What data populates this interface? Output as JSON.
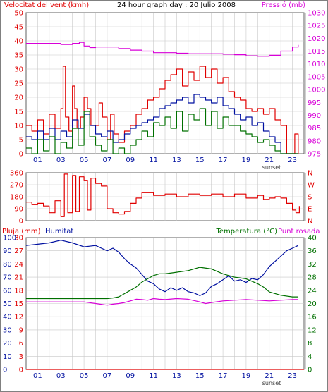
{
  "colors": {
    "red": "#e00000",
    "blue": "#0010a0",
    "green": "#007000",
    "magenta": "#d800d8",
    "grid": "#c8c8c8",
    "frame": "#606060"
  },
  "chart_data": [
    {
      "type": "line",
      "title": "24 hour graph day : 20 Julio 2008",
      "ylabel": "Velocitat del vent (kmh)",
      "ylabel_right": "Pressió (mb)",
      "ylim": [
        0,
        50
      ],
      "ylim_right": [
        975,
        1030
      ],
      "yticks": [
        0,
        5,
        10,
        15,
        20,
        25,
        30,
        35,
        40,
        45,
        50
      ],
      "yticks_right": [
        975,
        980,
        985,
        990,
        995,
        1000,
        1005,
        1010,
        1015,
        1020,
        1025,
        1030
      ],
      "xlim": [
        0,
        24
      ],
      "xticks": [
        "01",
        "03",
        "05",
        "07",
        "09",
        "11",
        "13",
        "15",
        "17",
        "19",
        "21",
        "23"
      ],
      "annotation": "sunset",
      "grid": true,
      "series": [
        {
          "axis": "right",
          "color": "magenta",
          "x": [
            0,
            1,
            2,
            3,
            4,
            4.6,
            5,
            5.5,
            6,
            7,
            8,
            9,
            10,
            11,
            12,
            13,
            14,
            15,
            16,
            17,
            18,
            19,
            20,
            21,
            22,
            23,
            23.5
          ],
          "values": [
            1018,
            1018,
            1018,
            1017.6,
            1018,
            1018.4,
            1017,
            1016.4,
            1016.6,
            1016.6,
            1016,
            1015.4,
            1015,
            1014.4,
            1014.4,
            1014.2,
            1014,
            1014,
            1014,
            1013.8,
            1013.6,
            1013.2,
            1013,
            1013.4,
            1015,
            1016.6,
            1017.4
          ]
        },
        {
          "axis": "left",
          "color": "red",
          "x": [
            0,
            0.5,
            1,
            1.5,
            2,
            2.5,
            3,
            3.2,
            3.4,
            3.7,
            4,
            4.2,
            4.4,
            4.7,
            5,
            5.3,
            5.6,
            6,
            6.3,
            6.6,
            7,
            7.3,
            7.6,
            8,
            8.5,
            9,
            9.5,
            10,
            10.5,
            11,
            11.5,
            12,
            12.5,
            13,
            13.5,
            14,
            14.5,
            15,
            15.5,
            16,
            16.5,
            17,
            17.5,
            18,
            18.5,
            19,
            19.5,
            20,
            20.5,
            21,
            21.5,
            22,
            22.5,
            23,
            23.2,
            23.5
          ],
          "values": [
            10,
            8,
            12,
            7,
            14,
            9,
            16,
            31,
            13,
            8,
            24,
            16,
            9,
            13,
            20,
            16,
            10,
            10,
            18,
            13,
            5,
            14,
            7,
            4,
            8,
            10,
            14,
            16,
            19,
            20,
            23,
            26,
            28,
            30,
            24,
            29,
            26,
            31,
            27,
            30,
            25,
            27,
            22,
            20,
            19,
            16,
            15,
            16,
            14,
            16,
            12,
            10,
            0,
            0,
            7,
            0
          ]
        },
        {
          "axis": "left",
          "color": "blue",
          "x": [
            0,
            0.5,
            1,
            1.5,
            2,
            2.5,
            3,
            3.5,
            4,
            4.5,
            5,
            5.5,
            6,
            6.5,
            7,
            7.5,
            8,
            8.5,
            9,
            9.5,
            10,
            10.5,
            11,
            11.5,
            12,
            12.5,
            13,
            13.5,
            14,
            14.5,
            15,
            15.5,
            16,
            16.5,
            17,
            17.5,
            18,
            18.5,
            19,
            19.5,
            20,
            20.5,
            21,
            21.5,
            22,
            22.5,
            23,
            23.5
          ],
          "values": [
            6,
            5,
            8,
            5,
            9,
            5,
            8,
            6,
            12,
            9,
            14,
            10,
            7,
            6,
            8,
            4,
            5,
            7,
            9,
            10,
            11,
            12,
            13,
            16,
            17,
            18,
            19,
            20,
            18,
            21,
            20,
            19,
            18,
            20,
            17,
            16,
            14,
            12,
            13,
            10,
            11,
            8,
            6,
            4,
            0,
            0,
            0,
            0
          ]
        },
        {
          "axis": "left",
          "color": "green",
          "x": [
            0,
            0.5,
            1,
            1.5,
            2,
            2.5,
            3,
            3.5,
            4,
            4.5,
            5,
            5.5,
            6,
            6.5,
            7,
            7.5,
            8,
            8.5,
            9,
            9.5,
            10,
            10.5,
            11,
            11.5,
            12,
            12.5,
            13,
            13.5,
            14,
            14.5,
            15,
            15.5,
            16,
            16.5,
            17,
            17.5,
            18,
            18.5,
            19,
            19.5,
            20,
            20.5,
            21,
            21.5,
            22,
            22.5,
            23,
            23.5
          ],
          "values": [
            2,
            0,
            5,
            1,
            6,
            0,
            4,
            2,
            9,
            3,
            15,
            6,
            3,
            1,
            5,
            0,
            2,
            0,
            3,
            5,
            8,
            6,
            11,
            10,
            13,
            9,
            15,
            8,
            14,
            12,
            16,
            10,
            15,
            9,
            13,
            10,
            10,
            8,
            7,
            6,
            4,
            5,
            3,
            1,
            0,
            0,
            0,
            0
          ]
        }
      ]
    },
    {
      "type": "line",
      "ylim": [
        0,
        360
      ],
      "yticks": [
        0,
        90,
        180,
        270,
        360
      ],
      "yticks_right": [
        "N",
        "E",
        "S",
        "W",
        "N"
      ],
      "xlim": [
        0,
        24
      ],
      "grid": true,
      "series": [
        {
          "color": "red",
          "x": [
            0,
            0.5,
            1,
            1.5,
            2,
            2.5,
            3,
            3.3,
            3.6,
            4,
            4.3,
            4.6,
            5,
            5.3,
            5.6,
            6,
            6.5,
            7,
            7.5,
            8,
            8.5,
            9,
            9.5,
            10,
            11,
            12,
            13,
            14,
            15,
            16,
            17,
            18,
            19,
            20,
            20.5,
            21,
            21.5,
            22,
            22.5,
            23,
            23.3,
            23.6
          ],
          "values": [
            140,
            120,
            130,
            110,
            60,
            150,
            30,
            350,
            60,
            340,
            70,
            330,
            300,
            80,
            320,
            280,
            260,
            90,
            60,
            50,
            70,
            130,
            170,
            210,
            190,
            200,
            180,
            200,
            190,
            200,
            180,
            200,
            170,
            190,
            160,
            170,
            180,
            170,
            130,
            80,
            60,
            110
          ]
        }
      ]
    },
    {
      "type": "line",
      "ylabel": "Pluja (mm)",
      "ylabel2": "Humitat",
      "ylabel_right": "Temperatura (°C)",
      "ylabel_right2": "Punt rosada",
      "ylim": [
        0,
        30
      ],
      "ylim_humidity": [
        0,
        100
      ],
      "ylim_right": [
        0,
        40
      ],
      "yticks": [
        0,
        3,
        6,
        9,
        12,
        15,
        18,
        21,
        24,
        27,
        30
      ],
      "yticks_humidity": [
        0,
        10,
        20,
        30,
        40,
        50,
        60,
        70,
        80,
        90,
        100
      ],
      "yticks_right": [
        0,
        4,
        8,
        12,
        16,
        20,
        24,
        28,
        32,
        36,
        40
      ],
      "xlim": [
        0,
        24
      ],
      "xticks": [
        "01",
        "03",
        "05",
        "07",
        "09",
        "11",
        "13",
        "15",
        "17",
        "19",
        "21",
        "23"
      ],
      "annotation": "sunset",
      "grid": true,
      "series": [
        {
          "axis": "left",
          "color": "red",
          "x": [
            0,
            24
          ],
          "values": [
            0,
            0
          ]
        },
        {
          "axis": "humidity",
          "color": "blue",
          "x": [
            0,
            1,
            2,
            3,
            4,
            5,
            6,
            6.5,
            7,
            7.5,
            8,
            8.5,
            9,
            9.5,
            10,
            10.5,
            11,
            11.5,
            12,
            12.5,
            13,
            13.5,
            14,
            14.5,
            15,
            15.5,
            16,
            16.5,
            17,
            17.5,
            18,
            18.5,
            19,
            19.5,
            20,
            20.5,
            21,
            21.5,
            22,
            22.5,
            23,
            23.5
          ],
          "values": [
            94,
            95,
            96,
            98,
            96,
            93,
            94,
            92,
            90,
            92,
            89,
            84,
            80,
            77,
            72,
            67,
            65,
            61,
            59,
            62,
            60,
            62,
            59,
            58,
            56,
            58,
            63,
            65,
            68,
            71,
            67,
            68,
            66,
            69,
            68,
            72,
            78,
            82,
            86,
            90,
            92,
            94
          ]
        },
        {
          "axis": "right",
          "color": "green",
          "x": [
            0,
            1,
            2,
            3,
            4,
            5,
            6,
            7,
            7.5,
            8,
            8.5,
            9,
            9.5,
            10,
            10.5,
            11,
            11.5,
            12,
            13,
            14,
            15,
            16,
            17,
            17.5,
            18,
            19,
            20,
            20.5,
            21,
            22,
            23,
            23.5
          ],
          "values": [
            21.5,
            21.5,
            21.5,
            21.5,
            21.5,
            21.5,
            21.5,
            21.5,
            21.7,
            22,
            23,
            24,
            25,
            26.5,
            27.5,
            28.5,
            29,
            29,
            29.5,
            30,
            31,
            30.5,
            29,
            28.5,
            28,
            27.5,
            26,
            25,
            23.5,
            22.5,
            22,
            22
          ]
        },
        {
          "axis": "right",
          "color": "magenta",
          "x": [
            0,
            1,
            2,
            3,
            4,
            5,
            6,
            7,
            7.5,
            8,
            8.5,
            9,
            9.5,
            10,
            10.5,
            11,
            11.5,
            12,
            13,
            14,
            15,
            15.5,
            16,
            17,
            18,
            19,
            20,
            21,
            22,
            23,
            23.5
          ],
          "values": [
            20.5,
            20.5,
            20.5,
            20.5,
            20.5,
            20.5,
            20,
            19.5,
            19.8,
            20,
            20.3,
            20.8,
            21.3,
            21.2,
            21,
            21.5,
            21.3,
            21.2,
            21.5,
            21.3,
            20.5,
            20,
            20.3,
            20.8,
            21,
            21.2,
            21,
            20.8,
            21,
            21.2,
            21.2
          ]
        }
      ]
    }
  ]
}
